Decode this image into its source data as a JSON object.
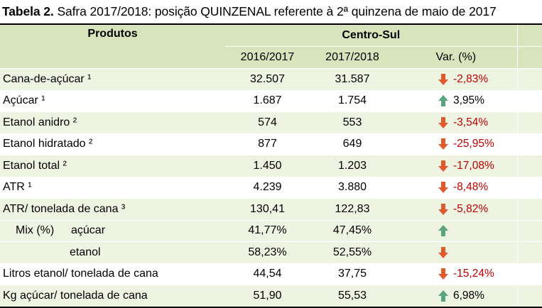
{
  "caption": {
    "prefix": "Tabela 2.",
    "text": " Safra 2017/2018: posição QUINZENAL referente à 2ª quinzena de maio de 2017"
  },
  "header": {
    "produtos": "Produtos",
    "region": "Centro-Sul",
    "col_2016": "2016/2017",
    "col_2017": "2017/2018",
    "col_var": "Var. (%)"
  },
  "rows": [
    {
      "name": "Cana-de-açúcar ¹",
      "v2016": "32.507",
      "v2017": "31.587",
      "trend": "down",
      "var": "-2,83%"
    },
    {
      "name": "Açúcar ¹",
      "v2016": "1.687",
      "v2017": "1.754",
      "trend": "up",
      "var": "3,95%"
    },
    {
      "name": "Etanol anidro ²",
      "v2016": "574",
      "v2017": "553",
      "trend": "down",
      "var": "-3,54%"
    },
    {
      "name": "Etanol hidratado ²",
      "v2016": "877",
      "v2017": "649",
      "trend": "down",
      "var": "-25,95%"
    },
    {
      "name": "Etanol total ²",
      "v2016": "1.450",
      "v2017": "1.203",
      "trend": "down",
      "var": "-17,08%"
    },
    {
      "name": "ATR ¹",
      "v2016": "4.239",
      "v2017": "3.880",
      "trend": "down",
      "var": "-8,48%"
    },
    {
      "name": "ATR/ tonelada de cana ³",
      "v2016": "130,41",
      "v2017": "122,83",
      "trend": "down",
      "var": "-5,82%"
    }
  ],
  "mix": {
    "label": "Mix (%)",
    "acucar": {
      "name": "açúcar",
      "v2016": "41,77%",
      "v2017": "47,45%",
      "trend": "up",
      "var": ""
    },
    "etanol": {
      "name": "etanol",
      "v2016": "58,23%",
      "v2017": "52,55%",
      "trend": "down",
      "var": ""
    }
  },
  "rows_after": [
    {
      "name": "Litros etanol/ tonelada de cana",
      "v2016": "44,54",
      "v2017": "37,75",
      "trend": "down",
      "var": "-15,24%"
    },
    {
      "name": "Kg açúcar/ tonelada de cana",
      "v2016": "51,90",
      "v2017": "55,53",
      "trend": "up",
      "var": "6,98%"
    }
  ],
  "colors": {
    "header_bg": "#d8e4bc",
    "stripe_bg": "#eef3e2",
    "arrow_down": "#e05a2b",
    "arrow_up": "#5aa57e",
    "negative_text": "#c00000"
  },
  "icons": {
    "down": "arrow-down-icon",
    "up": "arrow-up-icon"
  }
}
